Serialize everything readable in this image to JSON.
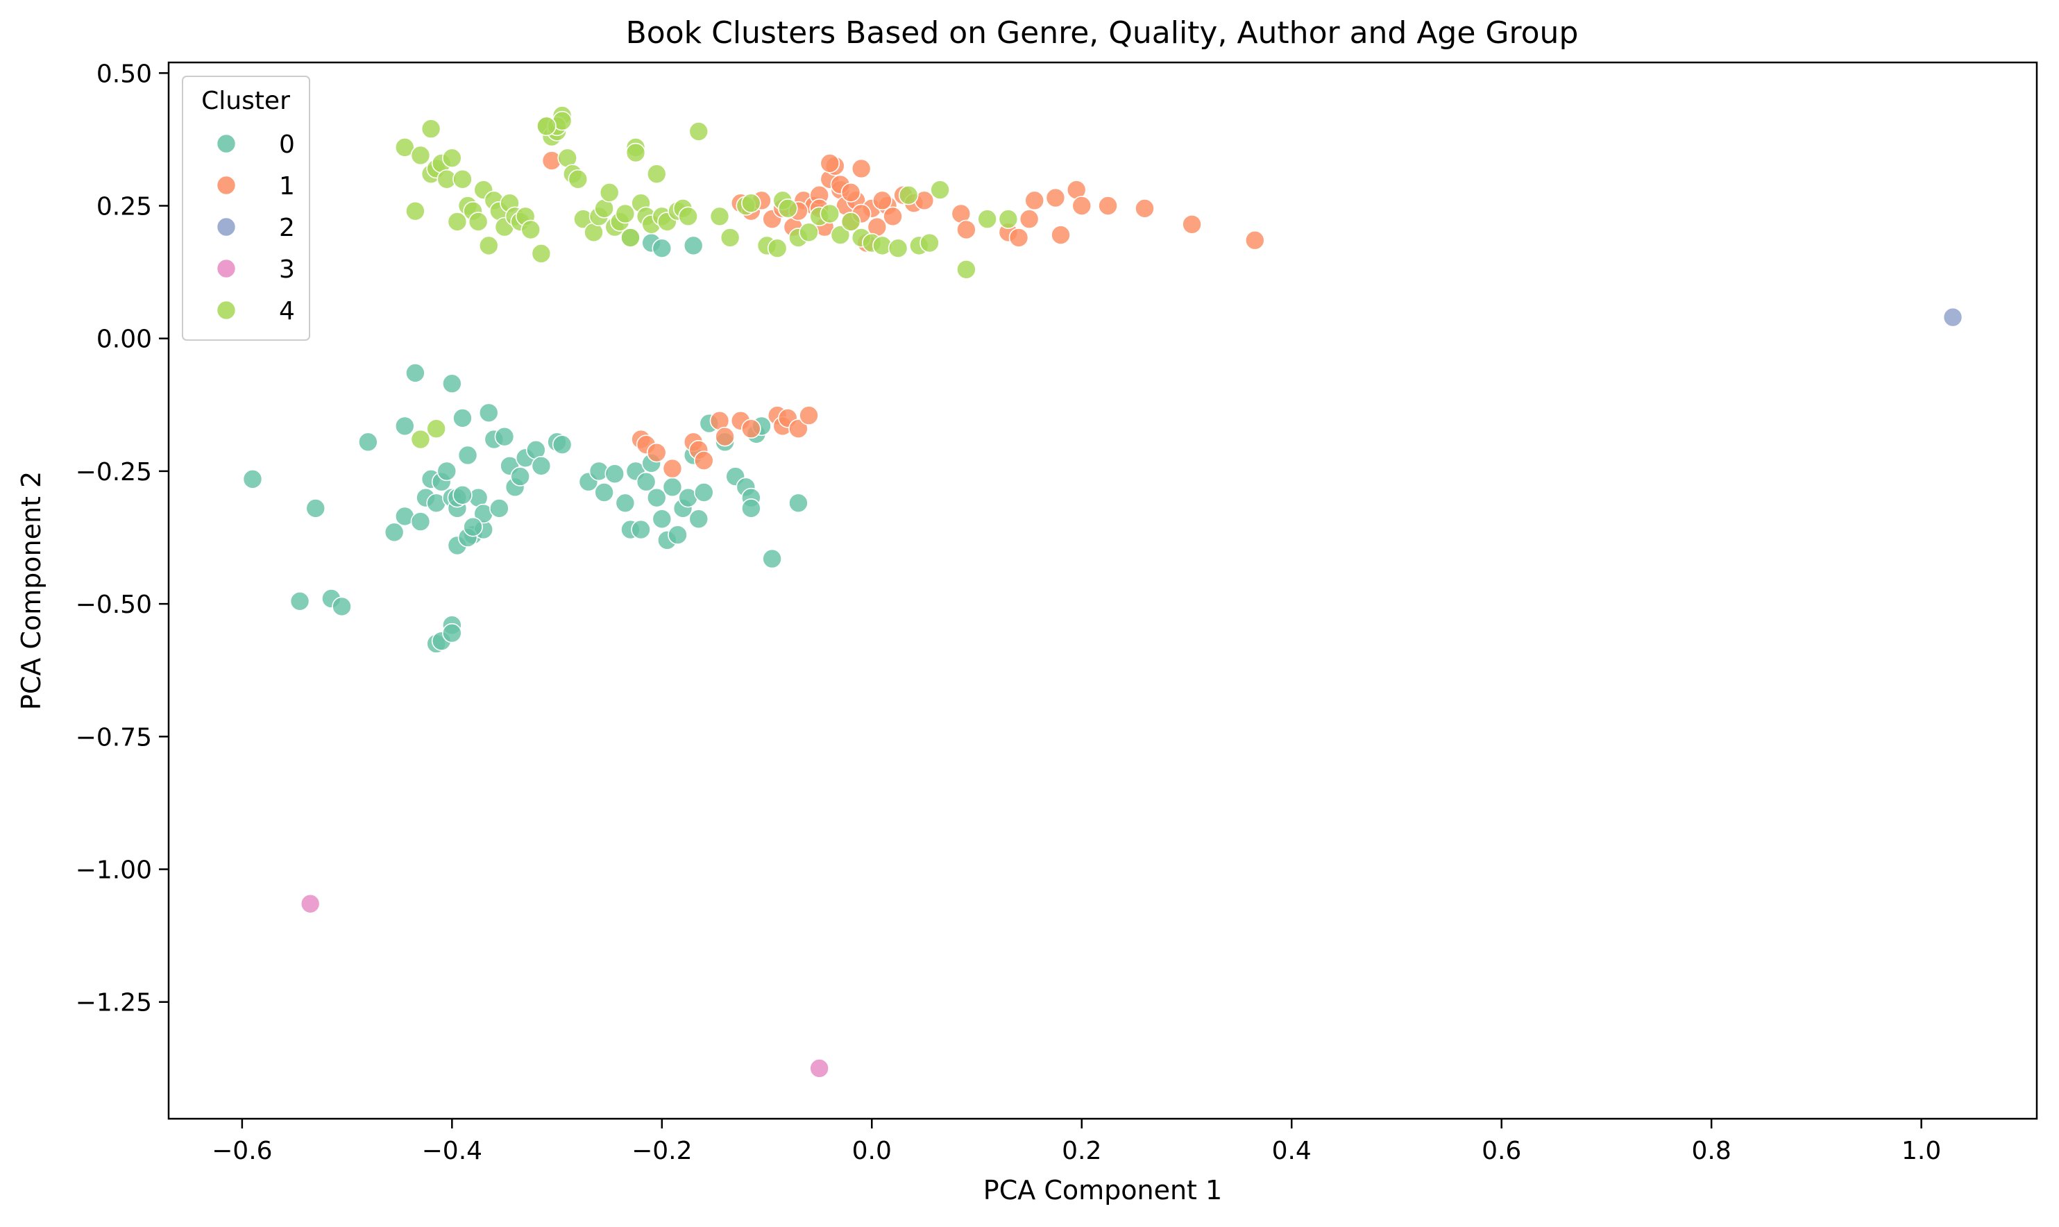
{
  "chart_data": {
    "type": "scatter",
    "title": "Book Clusters Based on Genre, Quality, Author and Age Group",
    "xlabel": "PCA Component 1",
    "ylabel": "PCA Component 2",
    "xlim": [
      -0.67,
      1.11
    ],
    "ylim": [
      -1.47,
      0.52
    ],
    "xticks": [
      -0.6,
      -0.4,
      -0.2,
      0.0,
      0.2,
      0.4,
      0.6,
      0.8,
      1.0
    ],
    "xtick_labels": [
      "−0.6",
      "−0.4",
      "−0.2",
      "0.0",
      "0.2",
      "0.4",
      "0.6",
      "0.8",
      "1.0"
    ],
    "yticks": [
      0.5,
      0.25,
      0.0,
      -0.25,
      -0.5,
      -0.75,
      -1.0,
      -1.25
    ],
    "ytick_labels": [
      "0.50",
      "0.25",
      "0.00",
      "−0.25",
      "−0.50",
      "−0.75",
      "−1.00",
      "−1.25"
    ],
    "grid": false,
    "legend": {
      "title": "Cluster",
      "position": "top-left"
    },
    "series": [
      {
        "name": "0",
        "color": "#66c2a5",
        "x": [
          -0.59,
          -0.53,
          -0.545,
          -0.515,
          -0.505,
          -0.48,
          -0.455,
          -0.445,
          -0.435,
          -0.43,
          -0.425,
          -0.42,
          -0.415,
          -0.41,
          -0.405,
          -0.4,
          -0.4,
          -0.395,
          -0.395,
          -0.39,
          -0.385,
          -0.38,
          -0.375,
          -0.37,
          -0.37,
          -0.365,
          -0.36,
          -0.355,
          -0.35,
          -0.345,
          -0.34,
          -0.335,
          -0.33,
          -0.32,
          -0.315,
          -0.3,
          -0.295,
          -0.415,
          -0.41,
          -0.4,
          -0.4,
          -0.395,
          -0.39,
          -0.385,
          -0.38,
          -0.445,
          -0.27,
          -0.26,
          -0.255,
          -0.245,
          -0.235,
          -0.23,
          -0.225,
          -0.22,
          -0.215,
          -0.21,
          -0.205,
          -0.2,
          -0.195,
          -0.19,
          -0.185,
          -0.18,
          -0.175,
          -0.17,
          -0.165,
          -0.16,
          -0.155,
          -0.14,
          -0.13,
          -0.12,
          -0.115,
          -0.11,
          -0.105,
          -0.095,
          -0.07,
          -0.115,
          -0.17,
          -0.21,
          -0.23,
          -0.2
        ],
        "y": [
          -0.265,
          -0.32,
          -0.495,
          -0.49,
          -0.505,
          -0.195,
          -0.365,
          -0.335,
          -0.065,
          -0.345,
          -0.3,
          -0.265,
          -0.31,
          -0.27,
          -0.25,
          -0.085,
          -0.3,
          -0.32,
          -0.39,
          -0.15,
          -0.22,
          -0.37,
          -0.3,
          -0.36,
          -0.33,
          -0.14,
          -0.19,
          -0.32,
          -0.185,
          -0.24,
          -0.28,
          -0.26,
          -0.225,
          -0.21,
          -0.24,
          -0.195,
          -0.2,
          -0.575,
          -0.57,
          -0.54,
          -0.555,
          -0.3,
          -0.295,
          -0.375,
          -0.355,
          -0.165,
          -0.27,
          -0.25,
          -0.29,
          -0.255,
          -0.31,
          -0.36,
          -0.25,
          -0.36,
          -0.27,
          -0.235,
          -0.3,
          -0.34,
          -0.38,
          -0.28,
          -0.37,
          -0.32,
          -0.3,
          -0.22,
          -0.34,
          -0.29,
          -0.16,
          -0.195,
          -0.26,
          -0.28,
          -0.3,
          -0.18,
          -0.165,
          -0.415,
          -0.31,
          -0.32,
          0.175,
          0.18,
          0.19,
          0.17
        ]
      },
      {
        "name": "1",
        "color": "#fc8d62",
        "x": [
          -0.305,
          -0.125,
          -0.115,
          -0.105,
          -0.095,
          -0.085,
          -0.075,
          -0.065,
          -0.055,
          -0.05,
          -0.045,
          -0.04,
          -0.035,
          -0.03,
          -0.025,
          -0.02,
          -0.015,
          -0.01,
          -0.005,
          0.0,
          0.005,
          0.015,
          0.02,
          0.03,
          0.04,
          0.05,
          0.085,
          0.09,
          0.13,
          0.14,
          0.15,
          0.155,
          0.175,
          0.18,
          0.195,
          0.2,
          0.225,
          0.26,
          0.305,
          0.365,
          -0.04,
          -0.03,
          -0.05,
          -0.02,
          -0.01,
          0.01,
          -0.07,
          -0.22,
          -0.215,
          -0.205,
          -0.19,
          -0.17,
          -0.165,
          -0.16,
          -0.145,
          -0.14,
          -0.125,
          -0.115,
          -0.09,
          -0.085,
          -0.08,
          -0.07,
          -0.06
        ],
        "y": [
          0.335,
          0.255,
          0.24,
          0.26,
          0.225,
          0.245,
          0.21,
          0.26,
          0.25,
          0.27,
          0.21,
          0.3,
          0.325,
          0.28,
          0.25,
          0.22,
          0.26,
          0.32,
          0.18,
          0.245,
          0.21,
          0.25,
          0.23,
          0.27,
          0.255,
          0.26,
          0.235,
          0.205,
          0.2,
          0.19,
          0.225,
          0.26,
          0.265,
          0.195,
          0.28,
          0.25,
          0.25,
          0.245,
          0.215,
          0.185,
          0.33,
          0.29,
          0.245,
          0.275,
          0.235,
          0.26,
          0.24,
          -0.19,
          -0.2,
          -0.215,
          -0.245,
          -0.195,
          -0.21,
          -0.23,
          -0.155,
          -0.185,
          -0.155,
          -0.17,
          -0.145,
          -0.165,
          -0.15,
          -0.17,
          -0.145
        ]
      },
      {
        "name": "2",
        "color": "#8da0cb",
        "x": [
          1.03
        ],
        "y": [
          0.04
        ]
      },
      {
        "name": "3",
        "color": "#e78ac3",
        "x": [
          -0.535,
          -0.05
        ],
        "y": [
          -1.065,
          -1.375
        ]
      },
      {
        "name": "4",
        "color": "#a6d854",
        "x": [
          -0.445,
          -0.435,
          -0.43,
          -0.42,
          -0.42,
          -0.415,
          -0.41,
          -0.405,
          -0.4,
          -0.395,
          -0.39,
          -0.385,
          -0.38,
          -0.375,
          -0.37,
          -0.365,
          -0.36,
          -0.355,
          -0.35,
          -0.345,
          -0.34,
          -0.335,
          -0.33,
          -0.325,
          -0.315,
          -0.31,
          -0.305,
          -0.3,
          -0.295,
          -0.29,
          -0.285,
          -0.28,
          -0.275,
          -0.265,
          -0.26,
          -0.255,
          -0.25,
          -0.245,
          -0.24,
          -0.235,
          -0.23,
          -0.225,
          -0.22,
          -0.215,
          -0.21,
          -0.205,
          -0.2,
          -0.195,
          -0.185,
          -0.18,
          -0.175,
          -0.165,
          -0.145,
          -0.135,
          -0.12,
          -0.115,
          -0.1,
          -0.09,
          -0.085,
          -0.08,
          -0.07,
          -0.06,
          -0.05,
          -0.04,
          -0.03,
          -0.02,
          -0.01,
          0.0,
          0.01,
          0.025,
          0.035,
          0.045,
          0.055,
          0.065,
          0.09,
          0.11,
          0.13,
          -0.3,
          -0.295,
          -0.31,
          -0.225,
          -0.43,
          -0.415
        ],
        "y": [
          0.36,
          0.24,
          0.345,
          0.395,
          0.31,
          0.32,
          0.33,
          0.3,
          0.34,
          0.22,
          0.3,
          0.25,
          0.24,
          0.22,
          0.28,
          0.175,
          0.26,
          0.24,
          0.21,
          0.255,
          0.23,
          0.22,
          0.23,
          0.205,
          0.16,
          0.4,
          0.38,
          0.39,
          0.42,
          0.34,
          0.31,
          0.3,
          0.225,
          0.2,
          0.23,
          0.245,
          0.275,
          0.21,
          0.22,
          0.235,
          0.19,
          0.36,
          0.255,
          0.23,
          0.215,
          0.31,
          0.23,
          0.22,
          0.24,
          0.245,
          0.23,
          0.39,
          0.23,
          0.19,
          0.25,
          0.255,
          0.175,
          0.17,
          0.26,
          0.245,
          0.19,
          0.2,
          0.23,
          0.235,
          0.195,
          0.22,
          0.19,
          0.18,
          0.175,
          0.17,
          0.27,
          0.175,
          0.18,
          0.28,
          0.13,
          0.225,
          0.225,
          0.4,
          0.41,
          0.4,
          0.35,
          -0.19,
          -0.17
        ]
      }
    ]
  }
}
